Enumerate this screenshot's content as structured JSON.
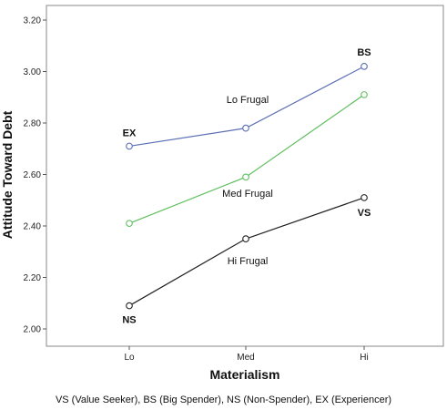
{
  "chart_data": {
    "type": "line",
    "xlabel": "Materialism",
    "ylabel": "Attitude Toward Debt",
    "categories": [
      "Lo",
      "Med",
      "Hi"
    ],
    "ylim": [
      2.0,
      3.2
    ],
    "yticks": [
      "2.00",
      "2.20",
      "2.40",
      "2.60",
      "2.80",
      "3.00",
      "3.20"
    ],
    "grid": false,
    "series": [
      {
        "name": "Lo Frugal",
        "values": [
          2.71,
          2.78,
          3.02
        ],
        "color": "#5b6fb5"
      },
      {
        "name": "Med Frugal",
        "values": [
          2.41,
          2.59,
          2.91
        ],
        "color": "#5fbf5f"
      },
      {
        "name": "Hi Frugal",
        "values": [
          2.09,
          2.35,
          2.51
        ],
        "color": "#222222"
      }
    ],
    "point_labels": [
      {
        "text": "EX",
        "series": 0,
        "index": 0
      },
      {
        "text": "BS",
        "series": 0,
        "index": 2
      },
      {
        "text": "NS",
        "series": 2,
        "index": 0
      },
      {
        "text": "VS",
        "series": 2,
        "index": 2
      }
    ]
  },
  "footnote": "VS (Value Seeker), BS (Big Spender), NS (Non-Spender), EX (Experiencer)"
}
